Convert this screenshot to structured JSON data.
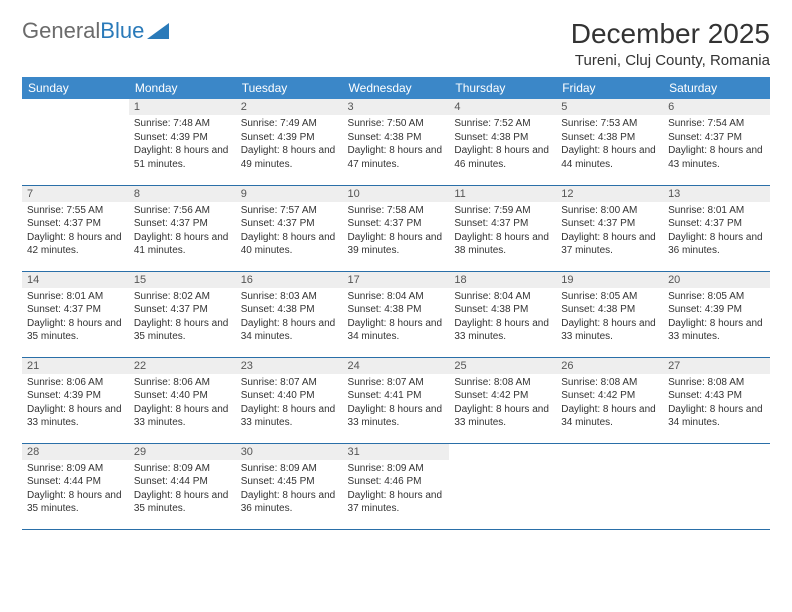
{
  "logo": {
    "text1": "General",
    "text2": "Blue"
  },
  "title": "December 2025",
  "location": "Tureni, Cluj County, Romania",
  "colors": {
    "header_bg": "#3b87c8",
    "header_text": "#ffffff",
    "daynum_bg": "#eeeeee",
    "rule": "#2a6fa8",
    "logo_gray": "#6b6b6b",
    "logo_blue": "#2a7ab9"
  },
  "weekdays": [
    "Sunday",
    "Monday",
    "Tuesday",
    "Wednesday",
    "Thursday",
    "Friday",
    "Saturday"
  ],
  "weeks": [
    [
      null,
      {
        "n": "1",
        "sr": "7:48 AM",
        "ss": "4:39 PM",
        "dl": "8 hours and 51 minutes."
      },
      {
        "n": "2",
        "sr": "7:49 AM",
        "ss": "4:39 PM",
        "dl": "8 hours and 49 minutes."
      },
      {
        "n": "3",
        "sr": "7:50 AM",
        "ss": "4:38 PM",
        "dl": "8 hours and 47 minutes."
      },
      {
        "n": "4",
        "sr": "7:52 AM",
        "ss": "4:38 PM",
        "dl": "8 hours and 46 minutes."
      },
      {
        "n": "5",
        "sr": "7:53 AM",
        "ss": "4:38 PM",
        "dl": "8 hours and 44 minutes."
      },
      {
        "n": "6",
        "sr": "7:54 AM",
        "ss": "4:37 PM",
        "dl": "8 hours and 43 minutes."
      }
    ],
    [
      {
        "n": "7",
        "sr": "7:55 AM",
        "ss": "4:37 PM",
        "dl": "8 hours and 42 minutes."
      },
      {
        "n": "8",
        "sr": "7:56 AM",
        "ss": "4:37 PM",
        "dl": "8 hours and 41 minutes."
      },
      {
        "n": "9",
        "sr": "7:57 AM",
        "ss": "4:37 PM",
        "dl": "8 hours and 40 minutes."
      },
      {
        "n": "10",
        "sr": "7:58 AM",
        "ss": "4:37 PM",
        "dl": "8 hours and 39 minutes."
      },
      {
        "n": "11",
        "sr": "7:59 AM",
        "ss": "4:37 PM",
        "dl": "8 hours and 38 minutes."
      },
      {
        "n": "12",
        "sr": "8:00 AM",
        "ss": "4:37 PM",
        "dl": "8 hours and 37 minutes."
      },
      {
        "n": "13",
        "sr": "8:01 AM",
        "ss": "4:37 PM",
        "dl": "8 hours and 36 minutes."
      }
    ],
    [
      {
        "n": "14",
        "sr": "8:01 AM",
        "ss": "4:37 PM",
        "dl": "8 hours and 35 minutes."
      },
      {
        "n": "15",
        "sr": "8:02 AM",
        "ss": "4:37 PM",
        "dl": "8 hours and 35 minutes."
      },
      {
        "n": "16",
        "sr": "8:03 AM",
        "ss": "4:38 PM",
        "dl": "8 hours and 34 minutes."
      },
      {
        "n": "17",
        "sr": "8:04 AM",
        "ss": "4:38 PM",
        "dl": "8 hours and 34 minutes."
      },
      {
        "n": "18",
        "sr": "8:04 AM",
        "ss": "4:38 PM",
        "dl": "8 hours and 33 minutes."
      },
      {
        "n": "19",
        "sr": "8:05 AM",
        "ss": "4:38 PM",
        "dl": "8 hours and 33 minutes."
      },
      {
        "n": "20",
        "sr": "8:05 AM",
        "ss": "4:39 PM",
        "dl": "8 hours and 33 minutes."
      }
    ],
    [
      {
        "n": "21",
        "sr": "8:06 AM",
        "ss": "4:39 PM",
        "dl": "8 hours and 33 minutes."
      },
      {
        "n": "22",
        "sr": "8:06 AM",
        "ss": "4:40 PM",
        "dl": "8 hours and 33 minutes."
      },
      {
        "n": "23",
        "sr": "8:07 AM",
        "ss": "4:40 PM",
        "dl": "8 hours and 33 minutes."
      },
      {
        "n": "24",
        "sr": "8:07 AM",
        "ss": "4:41 PM",
        "dl": "8 hours and 33 minutes."
      },
      {
        "n": "25",
        "sr": "8:08 AM",
        "ss": "4:42 PM",
        "dl": "8 hours and 33 minutes."
      },
      {
        "n": "26",
        "sr": "8:08 AM",
        "ss": "4:42 PM",
        "dl": "8 hours and 34 minutes."
      },
      {
        "n": "27",
        "sr": "8:08 AM",
        "ss": "4:43 PM",
        "dl": "8 hours and 34 minutes."
      }
    ],
    [
      {
        "n": "28",
        "sr": "8:09 AM",
        "ss": "4:44 PM",
        "dl": "8 hours and 35 minutes."
      },
      {
        "n": "29",
        "sr": "8:09 AM",
        "ss": "4:44 PM",
        "dl": "8 hours and 35 minutes."
      },
      {
        "n": "30",
        "sr": "8:09 AM",
        "ss": "4:45 PM",
        "dl": "8 hours and 36 minutes."
      },
      {
        "n": "31",
        "sr": "8:09 AM",
        "ss": "4:46 PM",
        "dl": "8 hours and 37 minutes."
      },
      null,
      null,
      null
    ]
  ],
  "labels": {
    "sunrise": "Sunrise:",
    "sunset": "Sunset:",
    "daylight": "Daylight:"
  }
}
